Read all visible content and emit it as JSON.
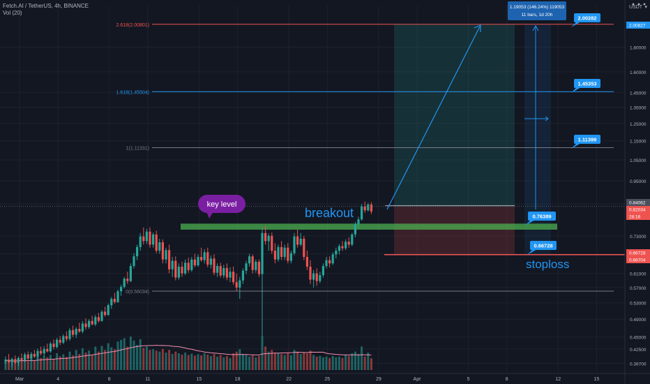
{
  "header": {
    "symbol_line": "Fetch.AI / TetherUS, 4h, BINANCE",
    "volume_label": "Vol (20)",
    "currency": "USDT"
  },
  "colors": {
    "background": "#131722",
    "up": "#26a69a",
    "down": "#ef5350",
    "accent": "#2196f3",
    "zone": "#4caf50",
    "purple": "#7b1fa2"
  },
  "chart_data": {
    "type": "candlestick",
    "title": "",
    "ylim": [
      0.36,
      2.1
    ],
    "y_scale": "log",
    "y_ticks": [
      "1.80000",
      "1.60000",
      "1.45000",
      "1.35000",
      "1.25000",
      "1.15000",
      "1.05000",
      "0.95000",
      "0.85000",
      "0.73000",
      "0.67000",
      "0.61000",
      "0.57000",
      "0.53000",
      "0.49000",
      "0.45000",
      "0.42500",
      "0.39700"
    ],
    "x_ticks": [
      "Mar",
      "4",
      "8",
      "11",
      "15",
      "18",
      "22",
      "25",
      "29",
      "Apr",
      "5",
      "8",
      "12",
      "15"
    ],
    "price_badges": [
      {
        "label": "2.00827",
        "value": 2.00827,
        "color": "#2196f3"
      },
      {
        "label": "0.84062",
        "value": 0.84062,
        "color": "#4a4f5c"
      },
      {
        "label": "0.82034",
        "value": 0.82034,
        "color": "#ef5350"
      },
      {
        "label": "28:16",
        "value": 0.79,
        "color": "#ef5350"
      },
      {
        "label": "0.66728",
        "value": 0.66728,
        "color": "#ef5350"
      },
      {
        "label": "0.66704",
        "value": 0.66704,
        "color": "#ef5350"
      }
    ],
    "fib_levels": [
      {
        "label": "2.618(2.00801)",
        "value": 2.00801,
        "color": "#ef5350"
      },
      {
        "label": "1.618(1.45504)",
        "value": 1.45504,
        "color": "#2196f3"
      },
      {
        "label": "1(1.11331)",
        "value": 1.11331,
        "color": "#787b86"
      },
      {
        "label": "0(0.56034)",
        "value": 0.56034,
        "color": "#787b86"
      }
    ],
    "callouts": [
      {
        "label": "2.00282",
        "value": 2.00282
      },
      {
        "label": "1.45353",
        "value": 1.45353
      },
      {
        "label": "1.11399",
        "value": 1.11399
      },
      {
        "label": "0.76389",
        "value": 0.76389
      },
      {
        "label": "0.66728",
        "value": 0.66728
      }
    ],
    "measure": {
      "line1": "1.19053 (146.24%) 119053",
      "line2": "11 bars, 1d 20h"
    },
    "annotations": {
      "key_level": "key level",
      "breakout": "breakout",
      "stoploss": "stoploss"
    },
    "key_level_zone": [
      0.752,
      0.774
    ],
    "current_price": 0.84062,
    "stop_price": 0.66728,
    "candles_ohlc": [
      [
        0.4,
        0.41,
        0.395,
        0.404
      ],
      [
        0.404,
        0.415,
        0.398,
        0.399
      ],
      [
        0.399,
        0.408,
        0.39,
        0.405
      ],
      [
        0.405,
        0.412,
        0.396,
        0.398
      ],
      [
        0.398,
        0.41,
        0.392,
        0.407
      ],
      [
        0.407,
        0.416,
        0.4,
        0.403
      ],
      [
        0.403,
        0.418,
        0.399,
        0.414
      ],
      [
        0.414,
        0.42,
        0.402,
        0.406
      ],
      [
        0.406,
        0.419,
        0.401,
        0.415
      ],
      [
        0.415,
        0.423,
        0.407,
        0.41
      ],
      [
        0.41,
        0.426,
        0.405,
        0.421
      ],
      [
        0.421,
        0.43,
        0.412,
        0.416
      ],
      [
        0.416,
        0.431,
        0.41,
        0.425
      ],
      [
        0.425,
        0.436,
        0.418,
        0.42
      ],
      [
        0.42,
        0.44,
        0.417,
        0.436
      ],
      [
        0.436,
        0.445,
        0.424,
        0.429
      ],
      [
        0.429,
        0.448,
        0.426,
        0.444
      ],
      [
        0.444,
        0.452,
        0.433,
        0.438
      ],
      [
        0.438,
        0.456,
        0.435,
        0.452
      ],
      [
        0.452,
        0.462,
        0.441,
        0.446
      ],
      [
        0.446,
        0.47,
        0.442,
        0.465
      ],
      [
        0.465,
        0.475,
        0.45,
        0.455
      ],
      [
        0.455,
        0.472,
        0.448,
        0.468
      ],
      [
        0.468,
        0.482,
        0.459,
        0.462
      ],
      [
        0.462,
        0.486,
        0.458,
        0.48
      ],
      [
        0.48,
        0.492,
        0.466,
        0.472
      ],
      [
        0.472,
        0.49,
        0.468,
        0.486
      ],
      [
        0.486,
        0.498,
        0.476,
        0.478
      ],
      [
        0.478,
        0.5,
        0.474,
        0.495
      ],
      [
        0.495,
        0.505,
        0.482,
        0.486
      ],
      [
        0.486,
        0.512,
        0.484,
        0.508
      ],
      [
        0.508,
        0.52,
        0.496,
        0.5
      ],
      [
        0.5,
        0.528,
        0.498,
        0.524
      ],
      [
        0.524,
        0.545,
        0.515,
        0.54
      ],
      [
        0.54,
        0.556,
        0.528,
        0.532
      ],
      [
        0.532,
        0.565,
        0.53,
        0.56
      ],
      [
        0.56,
        0.578,
        0.548,
        0.572
      ],
      [
        0.572,
        0.6,
        0.568,
        0.595
      ],
      [
        0.595,
        0.615,
        0.58,
        0.588
      ],
      [
        0.588,
        0.64,
        0.585,
        0.632
      ],
      [
        0.632,
        0.672,
        0.625,
        0.662
      ],
      [
        0.662,
        0.7,
        0.65,
        0.692
      ],
      [
        0.692,
        0.74,
        0.68,
        0.728
      ],
      [
        0.728,
        0.76,
        0.7,
        0.712
      ],
      [
        0.712,
        0.755,
        0.702,
        0.745
      ],
      [
        0.745,
        0.76,
        0.69,
        0.7
      ],
      [
        0.7,
        0.742,
        0.69,
        0.735
      ],
      [
        0.735,
        0.748,
        0.672,
        0.68
      ],
      [
        0.68,
        0.72,
        0.67,
        0.708
      ],
      [
        0.708,
        0.718,
        0.64,
        0.652
      ],
      [
        0.652,
        0.69,
        0.64,
        0.682
      ],
      [
        0.682,
        0.7,
        0.61,
        0.622
      ],
      [
        0.622,
        0.66,
        0.6,
        0.648
      ],
      [
        0.648,
        0.662,
        0.59,
        0.598
      ],
      [
        0.598,
        0.64,
        0.592,
        0.63
      ],
      [
        0.63,
        0.645,
        0.6,
        0.61
      ],
      [
        0.61,
        0.652,
        0.605,
        0.642
      ],
      [
        0.642,
        0.658,
        0.612,
        0.62
      ],
      [
        0.62,
        0.66,
        0.615,
        0.652
      ],
      [
        0.652,
        0.67,
        0.628,
        0.634
      ],
      [
        0.634,
        0.668,
        0.63,
        0.66
      ],
      [
        0.66,
        0.69,
        0.645,
        0.65
      ],
      [
        0.65,
        0.685,
        0.64,
        0.675
      ],
      [
        0.675,
        0.69,
        0.628,
        0.636
      ],
      [
        0.636,
        0.665,
        0.625,
        0.655
      ],
      [
        0.655,
        0.668,
        0.605,
        0.612
      ],
      [
        0.612,
        0.64,
        0.6,
        0.632
      ],
      [
        0.632,
        0.642,
        0.598,
        0.604
      ],
      [
        0.604,
        0.636,
        0.596,
        0.626
      ],
      [
        0.626,
        0.64,
        0.59,
        0.598
      ],
      [
        0.598,
        0.628,
        0.585,
        0.615
      ],
      [
        0.615,
        0.63,
        0.578,
        0.585
      ],
      [
        0.585,
        0.61,
        0.56,
        0.57
      ],
      [
        0.57,
        0.6,
        0.54,
        0.59
      ],
      [
        0.59,
        0.625,
        0.58,
        0.618
      ],
      [
        0.618,
        0.648,
        0.608,
        0.64
      ],
      [
        0.64,
        0.67,
        0.63,
        0.662
      ],
      [
        0.662,
        0.668,
        0.61,
        0.62
      ],
      [
        0.62,
        0.652,
        0.612,
        0.645
      ],
      [
        0.645,
        0.652,
        0.6,
        0.608
      ],
      [
        0.608,
        0.76,
        0.45,
        0.74
      ],
      [
        0.74,
        0.765,
        0.7,
        0.712
      ],
      [
        0.712,
        0.738,
        0.68,
        0.73
      ],
      [
        0.73,
        0.742,
        0.67,
        0.68
      ],
      [
        0.68,
        0.705,
        0.64,
        0.652
      ],
      [
        0.652,
        0.7,
        0.645,
        0.692
      ],
      [
        0.692,
        0.712,
        0.65,
        0.66
      ],
      [
        0.66,
        0.7,
        0.65,
        0.69
      ],
      [
        0.69,
        0.705,
        0.64,
        0.648
      ],
      [
        0.648,
        0.68,
        0.64,
        0.672
      ],
      [
        0.672,
        0.74,
        0.665,
        0.728
      ],
      [
        0.728,
        0.752,
        0.69,
        0.7
      ],
      [
        0.7,
        0.74,
        0.695,
        0.72
      ],
      [
        0.72,
        0.73,
        0.65,
        0.66
      ],
      [
        0.66,
        0.68,
        0.62,
        0.63
      ],
      [
        0.63,
        0.65,
        0.58,
        0.592
      ],
      [
        0.592,
        0.62,
        0.57,
        0.61
      ],
      [
        0.61,
        0.625,
        0.575,
        0.588
      ],
      [
        0.588,
        0.615,
        0.582,
        0.605
      ],
      [
        0.605,
        0.64,
        0.598,
        0.632
      ],
      [
        0.632,
        0.66,
        0.625,
        0.65
      ],
      [
        0.65,
        0.662,
        0.628,
        0.64
      ],
      [
        0.64,
        0.675,
        0.635,
        0.668
      ],
      [
        0.668,
        0.69,
        0.655,
        0.68
      ],
      [
        0.68,
        0.702,
        0.668,
        0.695
      ],
      [
        0.695,
        0.712,
        0.68,
        0.688
      ],
      [
        0.688,
        0.718,
        0.682,
        0.71
      ],
      [
        0.71,
        0.725,
        0.69,
        0.7
      ],
      [
        0.7,
        0.74,
        0.695,
        0.735
      ],
      [
        0.735,
        0.78,
        0.725,
        0.772
      ],
      [
        0.772,
        0.8,
        0.76,
        0.79
      ],
      [
        0.79,
        0.85,
        0.785,
        0.84
      ],
      [
        0.84,
        0.86,
        0.815,
        0.825
      ],
      [
        0.825,
        0.855,
        0.82,
        0.848
      ],
      [
        0.848,
        0.858,
        0.81,
        0.82
      ]
    ],
    "volumes": [
      0.3,
      0.25,
      0.28,
      0.22,
      0.35,
      0.27,
      0.3,
      0.26,
      0.33,
      0.29,
      0.4,
      0.36,
      0.42,
      0.38,
      0.45,
      0.33,
      0.5,
      0.41,
      0.47,
      0.39,
      0.55,
      0.44,
      0.6,
      0.48,
      0.65,
      0.52,
      0.58,
      0.46,
      0.7,
      0.55,
      0.72,
      0.6,
      0.8,
      0.68,
      0.62,
      0.85,
      0.9,
      0.95,
      0.7,
      1.0,
      0.88,
      0.75,
      0.92,
      0.66,
      0.7,
      0.6,
      0.62,
      0.58,
      0.55,
      0.63,
      0.52,
      0.6,
      0.48,
      0.55,
      0.5,
      0.46,
      0.52,
      0.45,
      0.49,
      0.43,
      0.47,
      0.44,
      0.5,
      0.46,
      0.42,
      0.48,
      0.4,
      0.45,
      0.38,
      0.42,
      0.36,
      0.5,
      0.55,
      0.62,
      0.48,
      0.45,
      0.4,
      0.44,
      0.38,
      0.42,
      1.0,
      0.7,
      0.55,
      0.6,
      0.52,
      0.5,
      0.48,
      0.45,
      0.5,
      0.44,
      0.6,
      0.55,
      0.48,
      0.52,
      0.5,
      0.58,
      0.45,
      0.4,
      0.42,
      0.38,
      0.4,
      0.36,
      0.42,
      0.38,
      0.4,
      0.36,
      0.45,
      0.42,
      0.5,
      0.55,
      0.48,
      0.7,
      0.4,
      0.52,
      0.35
    ]
  }
}
